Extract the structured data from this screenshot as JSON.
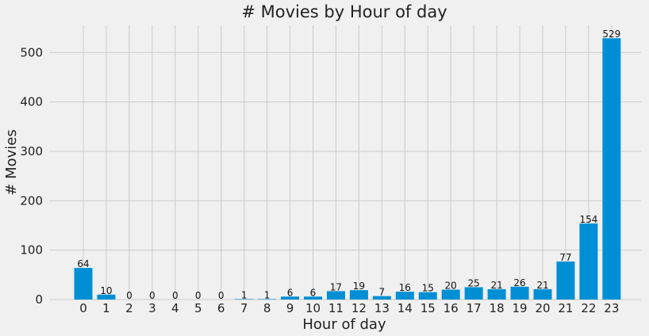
{
  "chart_data": {
    "type": "bar",
    "title": "# Movies by Hour of day",
    "xlabel": "Hour of day",
    "ylabel": "# Movies",
    "categories": [
      "0",
      "1",
      "2",
      "3",
      "4",
      "5",
      "6",
      "7",
      "8",
      "9",
      "10",
      "11",
      "12",
      "13",
      "14",
      "15",
      "16",
      "17",
      "18",
      "19",
      "20",
      "21",
      "22",
      "23"
    ],
    "values": [
      64,
      10,
      0,
      0,
      0,
      0,
      0,
      1,
      1,
      6,
      6,
      17,
      19,
      7,
      16,
      15,
      20,
      25,
      21,
      26,
      21,
      77,
      154,
      529
    ],
    "ylim": [
      0,
      555
    ],
    "yticks": [
      0,
      100,
      200,
      300,
      400,
      500
    ],
    "grid": true,
    "bar_color": "#008fd5",
    "background_color": "#f0f0f0",
    "grid_color": "#cbcbcb"
  }
}
